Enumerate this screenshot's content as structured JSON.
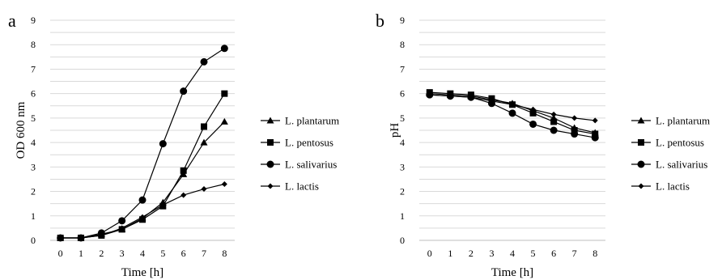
{
  "chart_data": [
    {
      "panel_label": "a",
      "type": "line",
      "xlabel": "Time [h]",
      "ylabel": "OD 600 nm",
      "x": [
        0,
        1,
        2,
        3,
        4,
        5,
        6,
        7,
        8
      ],
      "xlim": [
        0,
        8
      ],
      "ylim": [
        0,
        9
      ],
      "yticks": [
        0,
        1,
        2,
        3,
        4,
        5,
        6,
        7,
        8,
        9
      ],
      "grid": true,
      "legend_position": "right",
      "series": [
        {
          "name": "L. plantarum",
          "marker": "triangle",
          "values": [
            0.1,
            0.1,
            0.25,
            0.45,
            0.9,
            1.55,
            2.7,
            4.0,
            4.85
          ]
        },
        {
          "name": "L. pentosus",
          "marker": "square",
          "values": [
            0.1,
            0.1,
            0.2,
            0.45,
            0.85,
            1.4,
            2.85,
            4.65,
            6.0
          ]
        },
        {
          "name": "L. salivarius",
          "marker": "circle",
          "values": [
            0.1,
            0.1,
            0.3,
            0.8,
            1.65,
            3.95,
            6.1,
            7.3,
            7.85
          ]
        },
        {
          "name": "L. lactis",
          "marker": "diamond",
          "values": [
            0.1,
            0.1,
            0.2,
            0.5,
            0.95,
            1.45,
            1.85,
            2.1,
            2.3
          ]
        }
      ]
    },
    {
      "panel_label": "b",
      "type": "line",
      "xlabel": "Time [h]",
      "ylabel": "pH",
      "x": [
        0,
        1,
        2,
        3,
        4,
        5,
        6,
        7,
        8
      ],
      "xlim": [
        0,
        8
      ],
      "ylim": [
        0,
        9
      ],
      "yticks": [
        0,
        1,
        2,
        3,
        4,
        5,
        6,
        7,
        8,
        9
      ],
      "grid": true,
      "legend_position": "right",
      "series": [
        {
          "name": "L. plantarum",
          "marker": "triangle",
          "values": [
            6.0,
            5.95,
            5.9,
            5.75,
            5.6,
            5.3,
            5.0,
            4.6,
            4.4
          ]
        },
        {
          "name": "L. pentosus",
          "marker": "square",
          "values": [
            6.05,
            6.0,
            5.95,
            5.8,
            5.55,
            5.2,
            4.85,
            4.5,
            4.35
          ]
        },
        {
          "name": "L. salivarius",
          "marker": "circle",
          "values": [
            5.95,
            5.9,
            5.85,
            5.6,
            5.2,
            4.75,
            4.5,
            4.35,
            4.2
          ]
        },
        {
          "name": "L. lactis",
          "marker": "diamond",
          "values": [
            5.95,
            5.9,
            5.85,
            5.7,
            5.55,
            5.35,
            5.15,
            5.0,
            4.9
          ]
        }
      ]
    }
  ]
}
